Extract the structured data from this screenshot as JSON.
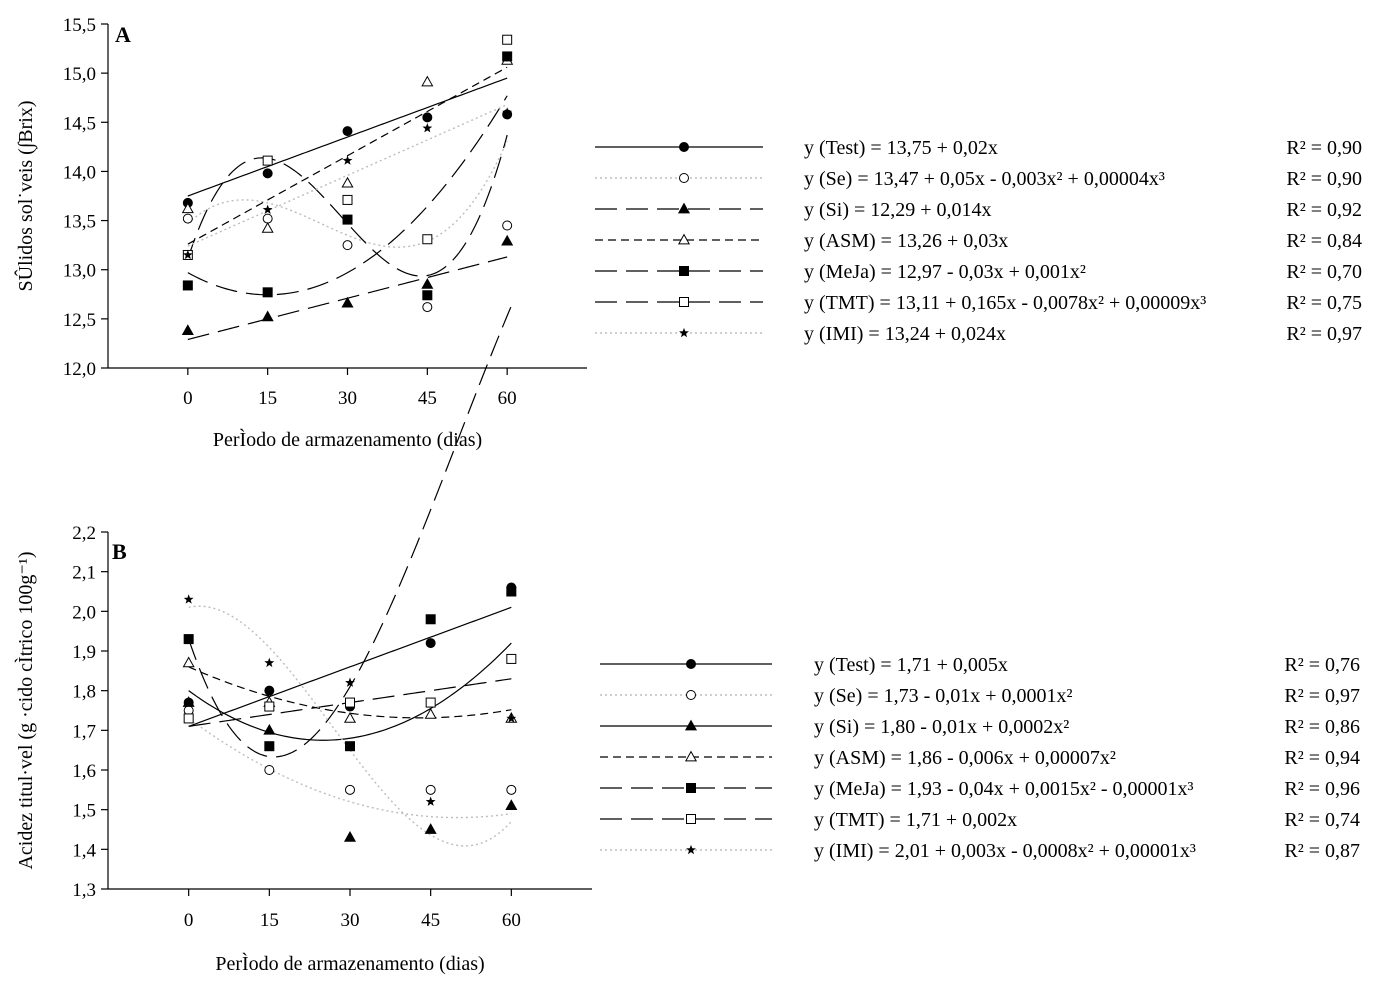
{
  "chart_data": [
    {
      "type": "scatter",
      "panel_label": "A",
      "ylabel": "SÛlidos sol˙veis (∫Brix)",
      "xlabel": "PerÌodo de armazenamento (dias)",
      "x": [
        0,
        15,
        30,
        45,
        60
      ],
      "x_tick_labels": [
        "0",
        "15",
        "30",
        "45",
        "60"
      ],
      "xlim": [
        -15,
        75
      ],
      "ylim": [
        12.0,
        15.5
      ],
      "y_ticks": [
        12.0,
        12.5,
        13.0,
        13.5,
        14.0,
        14.5,
        15.0,
        15.5
      ],
      "y_tick_labels": [
        "12,0",
        "12,5",
        "13,0",
        "13,5",
        "14,0",
        "14,5",
        "15,0",
        "15,5"
      ],
      "grid": false,
      "legend_position": "right",
      "series": [
        {
          "name": "Test",
          "marker": "filled-circle",
          "line": "solid",
          "values": [
            13.68,
            13.98,
            14.41,
            14.55,
            14.58
          ],
          "fit": [
            13.75,
            0.02,
            0,
            0
          ],
          "equation": "y (Test) = 13,75 + 0,02x",
          "r2": "R² = 0,90"
        },
        {
          "name": "Se",
          "marker": "open-circle",
          "line": "dotted",
          "values": [
            13.52,
            13.52,
            13.25,
            12.62,
            13.45
          ],
          "fit": [
            13.47,
            0.05,
            -0.003,
            4e-05
          ],
          "equation": "y (Se) = 13,47 + 0,05x - 0,003x² + 0,00004x³",
          "r2": "R² = 0,90"
        },
        {
          "name": "Si",
          "marker": "filled-triangle",
          "line": "long-dash",
          "values": [
            12.38,
            12.52,
            12.66,
            12.85,
            13.29
          ],
          "fit": [
            12.29,
            0.014,
            0,
            0
          ],
          "equation": "y (Si) = 12,29 + 0,014x",
          "r2": "R² = 0,92"
        },
        {
          "name": "ASM",
          "marker": "open-triangle",
          "line": "dashed",
          "values": [
            13.62,
            13.42,
            13.88,
            14.91,
            15.13
          ],
          "fit": [
            13.26,
            0.03,
            0,
            0
          ],
          "equation": "y (ASM) = 13,26 + 0,03x",
          "r2": "R² = 0,84"
        },
        {
          "name": "MeJa",
          "marker": "filled-square",
          "line": "long-dash",
          "values": [
            12.84,
            12.77,
            13.51,
            12.74,
            15.17
          ],
          "fit": [
            12.97,
            -0.03,
            0.001,
            0
          ],
          "equation": "y (MeJa) = 12,97 - 0,03x + 0,001x²",
          "r2": "R² = 0,70"
        },
        {
          "name": "TMT",
          "marker": "open-square",
          "line": "long-dash",
          "values": [
            13.15,
            14.11,
            13.71,
            13.31,
            15.34
          ],
          "fit": [
            13.11,
            0.165,
            -0.0078,
            9e-05
          ],
          "equation": "y (TMT) = 13,11 + 0,165x - 0,0078x² + 0,00009x³",
          "r2": "R² = 0,75"
        },
        {
          "name": "IMI",
          "marker": "star",
          "line": "dotted",
          "values": [
            13.15,
            13.61,
            14.11,
            14.44,
            14.6
          ],
          "fit": [
            13.24,
            0.024,
            0,
            0
          ],
          "equation": "y (IMI) = 13,24 + 0,024x",
          "r2": "R² = 0,97"
        }
      ]
    },
    {
      "type": "scatter",
      "panel_label": "B",
      "ylabel": "Acidez titul·vel (g ·cido cÌtrico 100g⁻¹)",
      "xlabel": "PerÌodo de armazenamento (dias)",
      "x": [
        0,
        15,
        30,
        45,
        60
      ],
      "x_tick_labels": [
        "0",
        "15",
        "30",
        "45",
        "60"
      ],
      "xlim": [
        -15,
        75
      ],
      "ylim": [
        1.3,
        2.2
      ],
      "y_ticks": [
        1.3,
        1.4,
        1.5,
        1.6,
        1.7,
        1.8,
        1.9,
        2.0,
        2.1,
        2.2
      ],
      "y_tick_labels": [
        "1,3",
        "1,4",
        "1,5",
        "1,6",
        "1,7",
        "1,8",
        "1,9",
        "2,0",
        "2,1",
        "2,2"
      ],
      "grid": false,
      "legend_position": "right",
      "series": [
        {
          "name": "Test",
          "marker": "filled-circle",
          "line": "solid",
          "values": [
            1.77,
            1.8,
            1.76,
            1.92,
            2.06
          ],
          "fit": [
            1.71,
            0.005,
            0,
            0
          ],
          "equation": "y (Test) = 1,71 + 0,005x",
          "r2": "R² = 0,76"
        },
        {
          "name": "Se",
          "marker": "open-circle",
          "line": "dotted",
          "values": [
            1.75,
            1.6,
            1.55,
            1.55,
            1.55
          ],
          "fit": [
            1.73,
            -0.01,
            0.0001,
            0
          ],
          "equation": "y (Se) = 1,73 - 0,01x + 0,0001x²",
          "r2": "R² = 0,97"
        },
        {
          "name": "Si",
          "marker": "filled-triangle",
          "line": "solid",
          "values": [
            1.77,
            1.7,
            1.43,
            1.45,
            1.51
          ],
          "fit": [
            1.8,
            -0.01,
            0.0002,
            0
          ],
          "equation": "y (Si) =  1,80 - 0,01x + 0,0002x²",
          "r2": "R² = 0,86"
        },
        {
          "name": "ASM",
          "marker": "open-triangle",
          "line": "dashed",
          "values": [
            1.87,
            1.77,
            1.73,
            1.74,
            1.73
          ],
          "fit": [
            1.86,
            -0.006,
            7e-05,
            0
          ],
          "equation": "y (ASM) = 1,86 - 0,006x + 0,00007x²",
          "r2": "R² = 0,94"
        },
        {
          "name": "MeJa",
          "marker": "filled-square",
          "line": "long-dash",
          "values": [
            1.93,
            1.66,
            1.66,
            1.98,
            2.05
          ],
          "fit": [
            1.93,
            -0.04,
            0.0015,
            -1e-05
          ],
          "equation": "y (MeJa) = 1,93 - 0,04x + 0,0015x² - 0,00001x³",
          "r2": "R² = 0,96"
        },
        {
          "name": "TMT",
          "marker": "open-square",
          "line": "long-dash",
          "values": [
            1.73,
            1.76,
            1.77,
            1.77,
            1.88
          ],
          "fit": [
            1.71,
            0.002,
            0,
            0
          ],
          "equation": "y (TMT) = 1,71 + 0,002x",
          "r2": "R² = 0,74"
        },
        {
          "name": "IMI",
          "marker": "star",
          "line": "dotted",
          "values": [
            2.03,
            1.87,
            1.82,
            1.52,
            1.73
          ],
          "fit": [
            2.01,
            0.003,
            -0.0008,
            1e-05
          ],
          "equation": "y (IMI) = 2,01 + 0,003x - 0,0008x² + 0,00001x³",
          "r2": "R² = 0,87"
        }
      ]
    }
  ]
}
